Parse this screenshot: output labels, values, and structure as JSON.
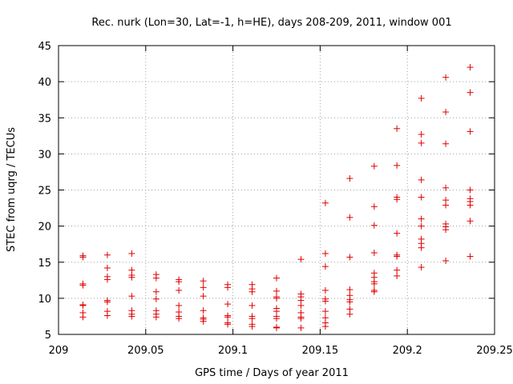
{
  "chart_data": {
    "type": "scatter",
    "title": "Rec. nurk (Lon=30, Lat=-1, h=HE), days 208-209, 2011, window 001",
    "xlabel": "GPS time / Days of year 2011",
    "ylabel": "STEC from uqrg / TECUs",
    "xlim": [
      209,
      209.25
    ],
    "ylim": [
      5,
      45
    ],
    "xticks": [
      209,
      209.05,
      209.1,
      209.15,
      209.2,
      209.25
    ],
    "xtick_labels": [
      "209",
      "209.05",
      "209.1",
      "209.15",
      "209.2",
      "209.25"
    ],
    "yticks": [
      5,
      10,
      15,
      20,
      25,
      30,
      35,
      40,
      45
    ],
    "ytick_labels": [
      "5",
      "10",
      "15",
      "20",
      "25",
      "30",
      "35",
      "40",
      "45"
    ],
    "grid": true,
    "marker": "+",
    "color": "#e00000",
    "points": [
      [
        209.014,
        15.9
      ],
      [
        209.014,
        15.7
      ],
      [
        209.014,
        12.0
      ],
      [
        209.014,
        11.8
      ],
      [
        209.014,
        9.1
      ],
      [
        209.014,
        9.0
      ],
      [
        209.014,
        8.0
      ],
      [
        209.014,
        7.4
      ],
      [
        209.028,
        16.0
      ],
      [
        209.028,
        14.2
      ],
      [
        209.028,
        13.0
      ],
      [
        209.028,
        12.6
      ],
      [
        209.028,
        9.7
      ],
      [
        209.028,
        9.5
      ],
      [
        209.028,
        8.2
      ],
      [
        209.028,
        7.6
      ],
      [
        209.042,
        16.2
      ],
      [
        209.042,
        13.9
      ],
      [
        209.042,
        13.2
      ],
      [
        209.042,
        12.9
      ],
      [
        209.042,
        10.3
      ],
      [
        209.042,
        8.3
      ],
      [
        209.042,
        7.8
      ],
      [
        209.042,
        7.5
      ],
      [
        209.056,
        13.3
      ],
      [
        209.056,
        12.8
      ],
      [
        209.056,
        10.9
      ],
      [
        209.056,
        9.9
      ],
      [
        209.056,
        8.3
      ],
      [
        209.056,
        7.8
      ],
      [
        209.056,
        7.4
      ],
      [
        209.069,
        12.6
      ],
      [
        209.069,
        12.3
      ],
      [
        209.069,
        11.1
      ],
      [
        209.069,
        9.0
      ],
      [
        209.069,
        8.1
      ],
      [
        209.069,
        7.5
      ],
      [
        209.069,
        7.2
      ],
      [
        209.083,
        12.4
      ],
      [
        209.083,
        11.5
      ],
      [
        209.083,
        10.3
      ],
      [
        209.083,
        8.3
      ],
      [
        209.083,
        7.3
      ],
      [
        209.083,
        7.1
      ],
      [
        209.083,
        6.8
      ],
      [
        209.097,
        11.9
      ],
      [
        209.097,
        11.5
      ],
      [
        209.097,
        9.2
      ],
      [
        209.097,
        7.6
      ],
      [
        209.097,
        7.4
      ],
      [
        209.097,
        6.6
      ],
      [
        209.097,
        6.4
      ],
      [
        209.111,
        11.9
      ],
      [
        209.111,
        11.3
      ],
      [
        209.111,
        10.9
      ],
      [
        209.111,
        9.0
      ],
      [
        209.111,
        7.5
      ],
      [
        209.111,
        7.2
      ],
      [
        209.111,
        6.4
      ],
      [
        209.111,
        6.1
      ],
      [
        209.125,
        12.8
      ],
      [
        209.125,
        11.0
      ],
      [
        209.125,
        10.2
      ],
      [
        209.125,
        10.0
      ],
      [
        209.125,
        8.6
      ],
      [
        209.125,
        8.2
      ],
      [
        209.125,
        7.5
      ],
      [
        209.125,
        7.2
      ],
      [
        209.125,
        6.0
      ],
      [
        209.125,
        5.9
      ],
      [
        209.139,
        15.4
      ],
      [
        209.139,
        10.6
      ],
      [
        209.139,
        10.2
      ],
      [
        209.139,
        9.7
      ],
      [
        209.139,
        9.0
      ],
      [
        209.139,
        8.0
      ],
      [
        209.139,
        7.4
      ],
      [
        209.139,
        7.2
      ],
      [
        209.139,
        5.9
      ],
      [
        209.153,
        23.2
      ],
      [
        209.153,
        16.2
      ],
      [
        209.153,
        14.4
      ],
      [
        209.153,
        11.1
      ],
      [
        209.153,
        9.9
      ],
      [
        209.153,
        9.6
      ],
      [
        209.153,
        8.2
      ],
      [
        209.153,
        7.3
      ],
      [
        209.153,
        6.6
      ],
      [
        209.153,
        6.1
      ],
      [
        209.167,
        26.6
      ],
      [
        209.167,
        21.2
      ],
      [
        209.167,
        15.7
      ],
      [
        209.167,
        11.2
      ],
      [
        209.167,
        10.4
      ],
      [
        209.167,
        9.8
      ],
      [
        209.167,
        9.5
      ],
      [
        209.167,
        8.5
      ],
      [
        209.167,
        7.8
      ],
      [
        209.181,
        28.3
      ],
      [
        209.181,
        22.7
      ],
      [
        209.181,
        20.1
      ],
      [
        209.181,
        16.3
      ],
      [
        209.181,
        13.5
      ],
      [
        209.181,
        12.9
      ],
      [
        209.181,
        12.3
      ],
      [
        209.181,
        12.0
      ],
      [
        209.181,
        11.1
      ],
      [
        209.181,
        10.9
      ],
      [
        209.194,
        33.5
      ],
      [
        209.194,
        28.4
      ],
      [
        209.194,
        24.0
      ],
      [
        209.194,
        23.7
      ],
      [
        209.194,
        19.0
      ],
      [
        209.194,
        16.0
      ],
      [
        209.194,
        15.8
      ],
      [
        209.194,
        13.9
      ],
      [
        209.194,
        13.1
      ],
      [
        209.208,
        37.7
      ],
      [
        209.208,
        32.7
      ],
      [
        209.208,
        31.5
      ],
      [
        209.208,
        26.4
      ],
      [
        209.208,
        24.0
      ],
      [
        209.208,
        21.0
      ],
      [
        209.208,
        20.0
      ],
      [
        209.208,
        18.2
      ],
      [
        209.208,
        17.6
      ],
      [
        209.208,
        17.0
      ],
      [
        209.208,
        14.3
      ],
      [
        209.222,
        40.6
      ],
      [
        209.222,
        35.8
      ],
      [
        209.222,
        31.4
      ],
      [
        209.222,
        25.3
      ],
      [
        209.222,
        23.6
      ],
      [
        209.222,
        22.9
      ],
      [
        209.222,
        20.3
      ],
      [
        209.222,
        19.9
      ],
      [
        209.222,
        19.5
      ],
      [
        209.222,
        15.2
      ],
      [
        209.236,
        42.0
      ],
      [
        209.236,
        38.5
      ],
      [
        209.236,
        33.1
      ],
      [
        209.236,
        25.0
      ],
      [
        209.236,
        23.8
      ],
      [
        209.236,
        23.4
      ],
      [
        209.236,
        22.9
      ],
      [
        209.236,
        20.7
      ],
      [
        209.236,
        15.8
      ]
    ]
  }
}
